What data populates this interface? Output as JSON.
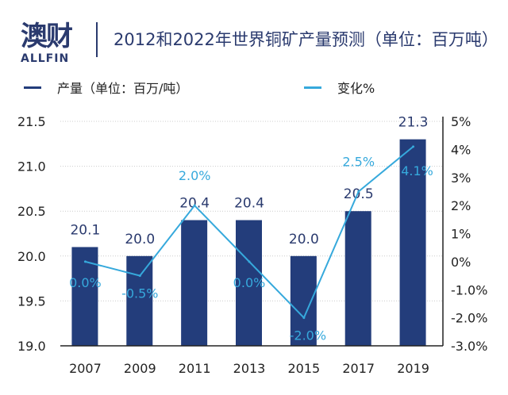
{
  "logo": {
    "cn": "澳财",
    "en": "ALLFIN"
  },
  "title": "2012和2022年世界铜矿产量预测（单位：百万吨）",
  "colors": {
    "bar": "#233d7b",
    "line": "#36a9dc",
    "text": "#2a3a6e"
  },
  "chart_data": {
    "type": "bar+line",
    "title": "2012和2022年世界铜矿产量预测（单位：百万吨）",
    "categories": [
      "2007",
      "2009",
      "2011",
      "2013",
      "2015",
      "2017",
      "2019"
    ],
    "series": [
      {
        "name": "产量（单位：百万/吨）",
        "type": "bar",
        "axis": "left",
        "values": [
          20.1,
          20.0,
          20.4,
          20.4,
          20.0,
          20.5,
          21.3
        ],
        "labels": [
          "20.1",
          "20.0",
          "20.4",
          "20.4",
          "20.0",
          "20.5",
          "21.3"
        ]
      },
      {
        "name": "变化%",
        "type": "line",
        "axis": "right",
        "values": [
          0.0,
          -0.5,
          2.0,
          0.0,
          -2.0,
          2.5,
          4.1
        ],
        "labels": [
          "0.0%",
          "-0.5%",
          "2.0%",
          "0.0%",
          "-2.0%",
          "2.5%",
          "4.1%"
        ]
      }
    ],
    "left_axis": {
      "ylim": [
        19.0,
        21.5
      ],
      "ticks": [
        "19.0",
        "19.5",
        "20.0",
        "20.5",
        "21.0",
        "21.5"
      ]
    },
    "right_axis": {
      "ylim": [
        -3,
        5
      ],
      "ticks": [
        "-3.0%",
        "-2.0%",
        "-1.0%",
        "0%",
        "1%",
        "2%",
        "3%",
        "4%",
        "5%"
      ]
    },
    "grid": true,
    "legend_position": "top"
  },
  "watermark": "澳财 ALLFIN"
}
